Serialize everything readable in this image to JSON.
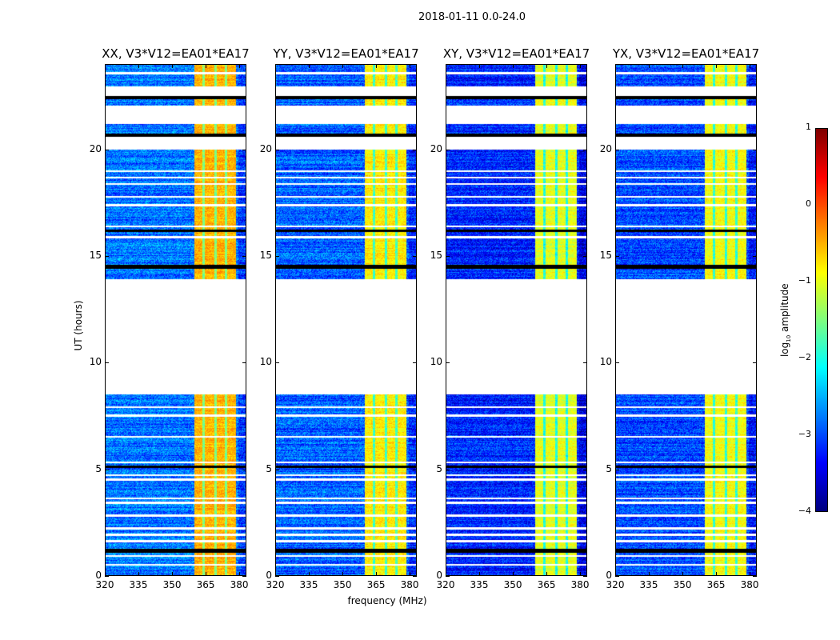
{
  "chart_data": {
    "type": "heatmap",
    "title": "2018-01-11 0.0-24.0",
    "xlabel": "frequency (MHz)",
    "ylabel": "UT (hours)",
    "xlim": [
      320,
      383.2
    ],
    "ylim": [
      0,
      24
    ],
    "xticks": [
      320,
      335,
      350,
      365,
      380
    ],
    "yticks": [
      0,
      5,
      10,
      15,
      20
    ],
    "colorbar": {
      "label_main": "log",
      "label_sub": "10",
      "label_rest": " amplitude",
      "range": [
        -4,
        1
      ],
      "ticks": [
        1,
        0,
        -1,
        -2,
        -3,
        -4
      ],
      "colormap": "jet"
    },
    "panels": [
      {
        "title": "XX, V3*V12=EA01*EA17",
        "background_level": -2.8,
        "band_level": -0.5
      },
      {
        "title": "YY, V3*V12=EA01*EA17",
        "background_level": -2.9,
        "band_level": -0.8
      },
      {
        "title": "XY, V3*V12=EA01*EA17",
        "background_level": -3.2,
        "band_level": -1.0
      },
      {
        "title": "YX, V3*V12=EA01*EA17",
        "background_level": -3.0,
        "band_level": -0.9
      }
    ],
    "bright_band_mhz": [
      360,
      379
    ],
    "band_stripes_mhz": [
      364.3,
      369.6,
      374.3
    ],
    "data_gaps_hours": [
      [
        22.55,
        23.0
      ],
      [
        21.2,
        22.1
      ],
      [
        20.0,
        20.6
      ],
      [
        8.5,
        13.9
      ]
    ],
    "flagged_hours": [
      [
        22.4,
        22.6
      ],
      [
        20.6,
        20.75
      ],
      [
        16.15,
        16.25
      ],
      [
        14.4,
        14.6
      ],
      [
        5.05,
        5.15
      ],
      [
        1.05,
        1.25
      ]
    ],
    "thin_gap_hours": [
      23.6,
      19.0,
      18.7,
      18.4,
      17.8,
      17.4,
      16.4,
      15.9,
      7.9,
      7.5,
      6.5,
      5.3,
      4.7,
      4.5,
      3.6,
      3.4,
      2.8,
      2.2,
      1.9,
      1.6,
      0.9,
      0.5
    ]
  }
}
